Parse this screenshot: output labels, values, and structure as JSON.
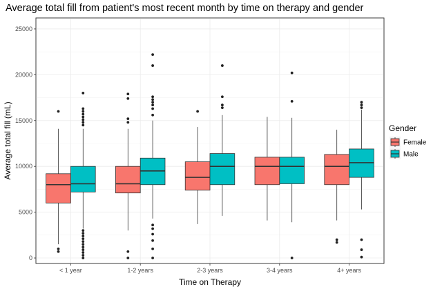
{
  "chart_data": {
    "type": "boxplot",
    "title": "Average total fill from patient's most recent month by time on therapy and gender",
    "xlabel": "Time on Therapy",
    "ylabel": "Average total fill (mL)",
    "ylim": [
      -600,
      26200
    ],
    "yticks": [
      0,
      5000,
      10000,
      15000,
      20000,
      25000
    ],
    "grid": true,
    "legend": {
      "title": "Gender",
      "position": "right"
    },
    "categories": [
      "< 1 year",
      "1-2 years",
      "2-3 years",
      "3-4 years",
      "4+ years"
    ],
    "series": [
      {
        "name": "Female",
        "color": "#F8766D",
        "boxes": [
          {
            "whisker_low": 1500,
            "q1": 6000,
            "median": 8000,
            "q3": 9200,
            "whisker_high": 14100,
            "outliers": [
              700,
              1000,
              16000
            ]
          },
          {
            "whisker_low": 3000,
            "q1": 7100,
            "median": 8100,
            "q3": 10000,
            "whisker_high": 14100,
            "outliers": [
              0,
              700,
              14800,
              15200,
              17400,
              17900
            ]
          },
          {
            "whisker_low": 3700,
            "q1": 7400,
            "median": 8800,
            "q3": 10500,
            "whisker_high": 14300,
            "outliers": [
              16000
            ]
          },
          {
            "whisker_low": 4100,
            "q1": 8000,
            "median": 10000,
            "q3": 11000,
            "whisker_high": 15400,
            "outliers": []
          },
          {
            "whisker_low": 4100,
            "q1": 8000,
            "median": 10000,
            "q3": 11300,
            "whisker_high": 14000,
            "outliers": [
              1700,
              2000
            ]
          }
        ]
      },
      {
        "name": "Male",
        "color": "#00BFC4",
        "boxes": [
          {
            "whisker_low": 3200,
            "q1": 7200,
            "median": 8100,
            "q3": 10000,
            "whisker_high": 14100,
            "outliers": [
              0,
              300,
              600,
              900,
              1200,
              1500,
              1800,
              2100,
              2400,
              2700,
              3000,
              14500,
              14800,
              15100,
              15400,
              15700,
              16000,
              16300,
              18000
            ]
          },
          {
            "whisker_low": 4300,
            "q1": 8000,
            "median": 9500,
            "q3": 10900,
            "whisker_high": 15000,
            "outliers": [
              0,
              1000,
              1900,
              2600,
              3200,
              3600,
              15600,
              16300,
              16700,
              17000,
              17300,
              17600,
              21000,
              22200
            ]
          },
          {
            "whisker_low": 4600,
            "q1": 8000,
            "median": 10000,
            "q3": 11400,
            "whisker_high": 15600,
            "outliers": [
              16400,
              16700,
              17600,
              21000
            ]
          },
          {
            "whisker_low": 3900,
            "q1": 8100,
            "median": 10000,
            "q3": 11000,
            "whisker_high": 15300,
            "outliers": [
              0,
              17100,
              20200
            ]
          },
          {
            "whisker_low": 5300,
            "q1": 8800,
            "median": 10400,
            "q3": 11900,
            "whisker_high": 16200,
            "outliers": [
              100,
              900,
              2000,
              16400,
              16700,
              17000
            ]
          }
        ]
      }
    ]
  }
}
